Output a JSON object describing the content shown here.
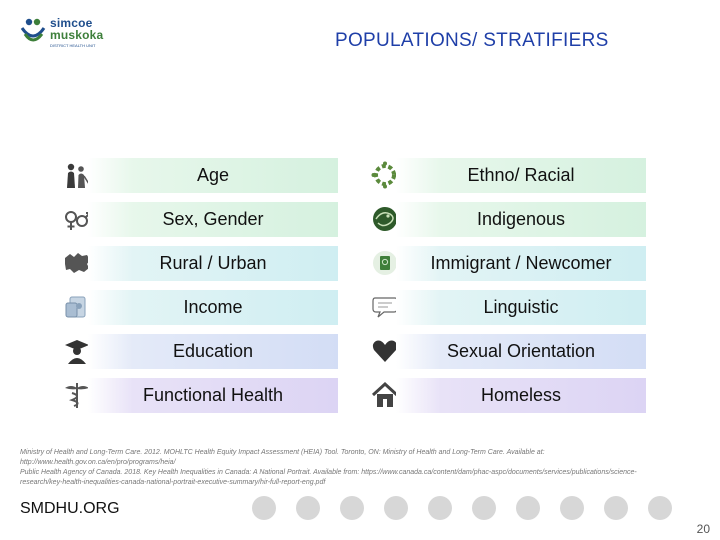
{
  "logo": {
    "line1": "simcoe",
    "line2": "muskoka",
    "tagline": "DISTRICT HEALTH UNIT"
  },
  "title": "POPULATIONS/ STRATIFIERS",
  "left_items": [
    {
      "label": "Age",
      "icon": "people-icon"
    },
    {
      "label": "Sex, Gender",
      "icon": "gender-symbols-icon"
    },
    {
      "label": "Rural / Urban",
      "icon": "canada-map-icon"
    },
    {
      "label": "Income",
      "icon": "money-icon"
    },
    {
      "label": "Education",
      "icon": "graduate-icon"
    },
    {
      "label": "Functional Health",
      "icon": "caduceus-icon"
    }
  ],
  "right_items": [
    {
      "label": "Ethno/ Racial",
      "icon": "people-circle-icon"
    },
    {
      "label": "Indigenous",
      "icon": "indigenous-art-icon"
    },
    {
      "label": "Immigrant / Newcomer",
      "icon": "passport-icon"
    },
    {
      "label": "Linguistic",
      "icon": "speech-bubble-icon"
    },
    {
      "label": "Sexual Orientation",
      "icon": "heart-icon"
    },
    {
      "label": "Homeless",
      "icon": "house-icon"
    }
  ],
  "references": [
    "Ministry of Health and Long-Term Care. 2012. MOHLTC Health Equity Impact Assessment (HEIA) Tool. Toronto, ON: Ministry of Health and Long-Term Care. Available at: http://www.health.gov.on.ca/en/pro/programs/heia/",
    "Public Health Agency of Canada. 2018. Key Health Inequalities in Canada: A National Portrait. Available from: https://www.canada.ca/content/dam/phac-aspc/documents/services/publications/science-research/key-health-inequalities-canada-national-portrait-executive-summary/hir-full-report-eng.pdf"
  ],
  "footer": {
    "site": "SMDHU.ORG",
    "page_number": "20"
  },
  "colors": {
    "title": "#1f3fa8",
    "row_green": "#d5f1df",
    "row_cyan": "#cfeef2",
    "row_blue": "#d3ddf5",
    "row_violet": "#dcd4f4",
    "footer_dots": "#d7d7d7"
  }
}
